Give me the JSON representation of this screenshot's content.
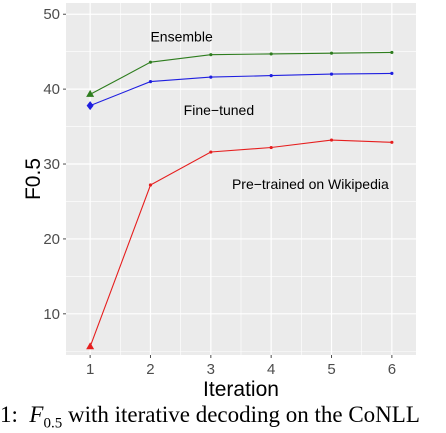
{
  "chart_data": {
    "type": "line",
    "xlabel": "Iteration",
    "ylabel": "F0.5",
    "x": [
      1,
      2,
      3,
      4,
      5,
      6
    ],
    "xlim": [
      0.6,
      6.4
    ],
    "ylim": [
      4.5,
      51.5
    ],
    "xticks": [
      "1",
      "2",
      "3",
      "4",
      "5",
      "6"
    ],
    "yticks": [
      10,
      20,
      30,
      40,
      50
    ],
    "grid": true,
    "legend": "none",
    "series": [
      {
        "name": "Ensemble",
        "values": [
          39.3,
          43.6,
          44.6,
          44.7,
          44.8,
          44.9
        ],
        "color": "#2e7d1e",
        "first_marker": "triangle"
      },
      {
        "name": "Fine-tuned",
        "values": [
          37.8,
          41.0,
          41.6,
          41.8,
          42.0,
          42.1
        ],
        "color": "#1f1fe0",
        "first_marker": "diamond"
      },
      {
        "name": "Pre-trained on Wikipedia",
        "values": [
          5.6,
          27.2,
          31.6,
          32.2,
          33.2,
          32.9
        ],
        "color": "#e61e1e",
        "first_marker": "triangle"
      }
    ],
    "annotations": [
      {
        "text": "Ensemble",
        "x": 2.0,
        "y": 47.0
      },
      {
        "text": "Fine−tuned",
        "x": 2.55,
        "y": 37.2
      },
      {
        "text": "Pre−trained on Wikipedia",
        "x": 3.35,
        "y": 27.3
      }
    ]
  },
  "caption": {
    "prefix": "1:  ",
    "math_base": "F",
    "math_sub": "0.5",
    "rest": " with iterative decoding on the CoNLL"
  }
}
